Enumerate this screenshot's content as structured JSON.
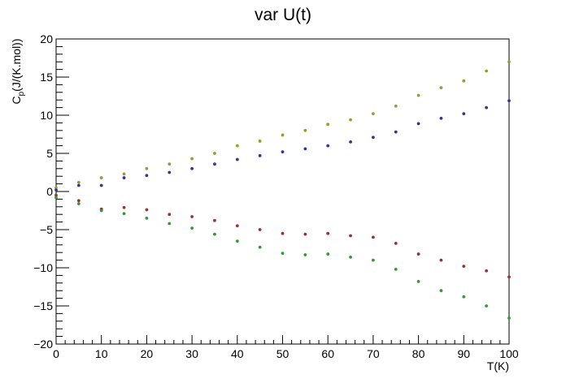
{
  "chart_data": {
    "type": "scatter",
    "title": "var U(t)",
    "xlabel": "T(K)",
    "ylabel": "C_p(J/(K.mol))",
    "xlim": [
      0,
      100
    ],
    "ylim": [
      -20,
      20
    ],
    "x_ticks": [
      0,
      10,
      20,
      30,
      40,
      50,
      60,
      70,
      80,
      90,
      100
    ],
    "y_ticks": [
      -20,
      -15,
      -10,
      -5,
      0,
      5,
      10,
      15,
      20
    ],
    "x_tick_labels": [
      "0",
      "10",
      "20",
      "30",
      "40",
      "50",
      "60",
      "70",
      "80",
      "90",
      "100"
    ],
    "y_tick_labels": [
      "−20",
      "−15",
      "−10",
      "−5",
      "0",
      "5",
      "10",
      "15",
      "20"
    ],
    "grid": false,
    "legend": "none",
    "series": [
      {
        "color": "#9a9a32",
        "x": [
          0,
          5,
          10,
          15,
          20,
          25,
          30,
          35,
          40,
          45,
          50,
          55,
          60,
          65,
          70,
          75,
          80,
          85,
          90,
          95,
          100
        ],
        "y": [
          0.5,
          1.2,
          1.8,
          2.3,
          3.0,
          3.6,
          4.3,
          5.0,
          6.0,
          6.6,
          7.4,
          8.0,
          8.8,
          9.4,
          10.2,
          11.2,
          12.6,
          13.6,
          14.5,
          15.8,
          17.0
        ]
      },
      {
        "color": "#33339a",
        "x": [
          0,
          5,
          10,
          15,
          20,
          25,
          30,
          35,
          40,
          45,
          50,
          55,
          60,
          65,
          70,
          75,
          80,
          85,
          90,
          95,
          100
        ],
        "y": [
          0.2,
          0.8,
          0.8,
          1.8,
          2.1,
          2.5,
          3.0,
          3.6,
          4.2,
          4.7,
          5.2,
          5.6,
          6.0,
          6.5,
          7.1,
          7.8,
          8.9,
          9.6,
          10.2,
          11.0,
          11.9
        ]
      },
      {
        "color": "#9a3232",
        "x": [
          0,
          5,
          10,
          15,
          20,
          25,
          30,
          35,
          40,
          45,
          50,
          55,
          60,
          65,
          70,
          75,
          80,
          85,
          90,
          95,
          100
        ],
        "y": [
          -0.5,
          -1.2,
          -2.3,
          -2.1,
          -2.4,
          -3.0,
          -3.3,
          -3.8,
          -4.5,
          -5.0,
          -5.5,
          -5.6,
          -5.5,
          -5.8,
          -6.0,
          -6.8,
          -8.2,
          -9.0,
          -9.8,
          -10.4,
          -11.2
        ]
      },
      {
        "color": "#339a33",
        "x": [
          0,
          5,
          10,
          15,
          20,
          25,
          30,
          35,
          40,
          45,
          50,
          55,
          60,
          65,
          70,
          75,
          80,
          85,
          90,
          95,
          100
        ],
        "y": [
          -0.8,
          -1.6,
          -2.5,
          -2.9,
          -3.5,
          -4.2,
          -4.8,
          -5.6,
          -6.5,
          -7.3,
          -8.1,
          -8.3,
          -8.2,
          -8.6,
          -9.0,
          -10.2,
          -11.8,
          -13.0,
          -13.8,
          -15.0,
          -16.6
        ]
      }
    ]
  }
}
